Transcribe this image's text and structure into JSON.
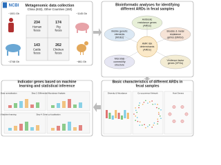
{
  "logo": "NCBI",
  "collection": {
    "title": "Metagenomic data collection",
    "subtitle": "China (933), Other Countries (150)",
    "sizes": [
      "~1001 Gb",
      "~1145 Gb",
      "~2748 Gb",
      "~861 Gb"
    ],
    "cells": [
      [
        "234",
        "Human",
        "feces"
      ],
      [
        "174",
        "Pig",
        "feces"
      ],
      [
        "143",
        "Cattle",
        "feces"
      ],
      [
        "262",
        "Chicken",
        "feces"
      ]
    ]
  },
  "analysis": {
    "title": [
      "Bioinformatic analyses for identifying",
      "different ARDs in fecal samples"
    ],
    "center": [
      "AMR risk",
      "determinants",
      "(ARDs)"
    ],
    "items": [
      [
        "Antibiotic",
        "resistance genes",
        "(ARGs)"
      ],
      [
        "Mobile genetic",
        "elements",
        "(MGEs)"
      ],
      [
        "Biocide & metal",
        "resistance",
        "genes (BMGs)"
      ],
      [
        "Microbial",
        "community",
        "structure"
      ],
      [
        "Virulence factor",
        "genes (VFGs)"
      ]
    ]
  },
  "characteristics": {
    "title": [
      "Basic characteristics of different ARDs in",
      "fecal samples"
    ],
    "panels": [
      "Diversity & Abundance",
      "Co-occurrence Network",
      "Host Genera"
    ]
  },
  "indicator": {
    "title": [
      "Indicator genes based on machine",
      "learning and statistical inference"
    ],
    "steps": [
      "Step 1: Data normalization",
      "Step 2: Differential Abundance Analysis",
      "Step 3: Machine learning",
      "Step 4: Gene co-localization"
    ]
  }
}
